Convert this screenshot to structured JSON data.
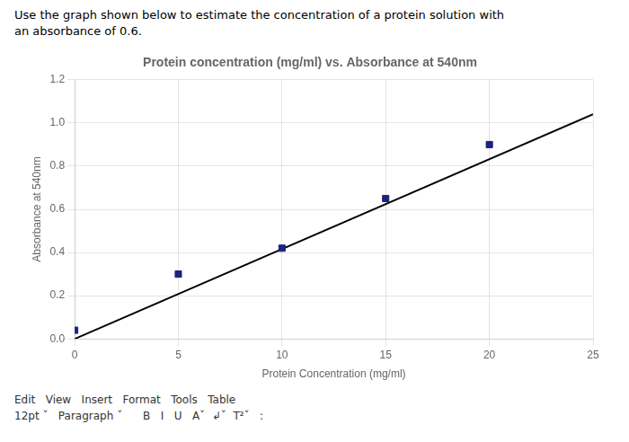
{
  "chart_data": {
    "type": "scatter",
    "title": "Protein concentration (mg/ml) vs. Absorbance at 540nm",
    "xlabel": "Protein Concentration (mg/ml)",
    "ylabel": "Absorbance at 540nm",
    "annotations": [
      "Use the graph shown below to estimate the concentration of a protein solution with",
      "an absorbance of 0.6.",
      "Edit   View   Insert   Format   Tools   Table",
      "12pt ˇ   Paragraph ˇ      B   I   U   Aˇ  ↲ˇ  T²ˇ   :"
    ],
    "series": [
      {
        "type": "scatter",
        "marker": "square",
        "color": "#1a237e",
        "x": [
          0,
          5,
          10,
          15,
          20
        ],
        "values": [
          0.04,
          0.3,
          0.42,
          0.65,
          0.9
        ]
      },
      {
        "type": "line",
        "line_style": "solid",
        "color": "#000000",
        "x": [
          0,
          25
        ],
        "values": [
          0.0,
          1.04
        ]
      }
    ],
    "xlim": [
      0,
      25
    ],
    "xticks": [
      0,
      5,
      10,
      15,
      20,
      25
    ],
    "ylim": [
      0,
      1.2
    ],
    "yticks": [
      {
        "value": 0,
        "label": "0.0"
      },
      0.2,
      0.4,
      0.6,
      0.8,
      {
        "value": 1.0,
        "label": "1.0"
      },
      1.2
    ],
    "grid": true
  }
}
